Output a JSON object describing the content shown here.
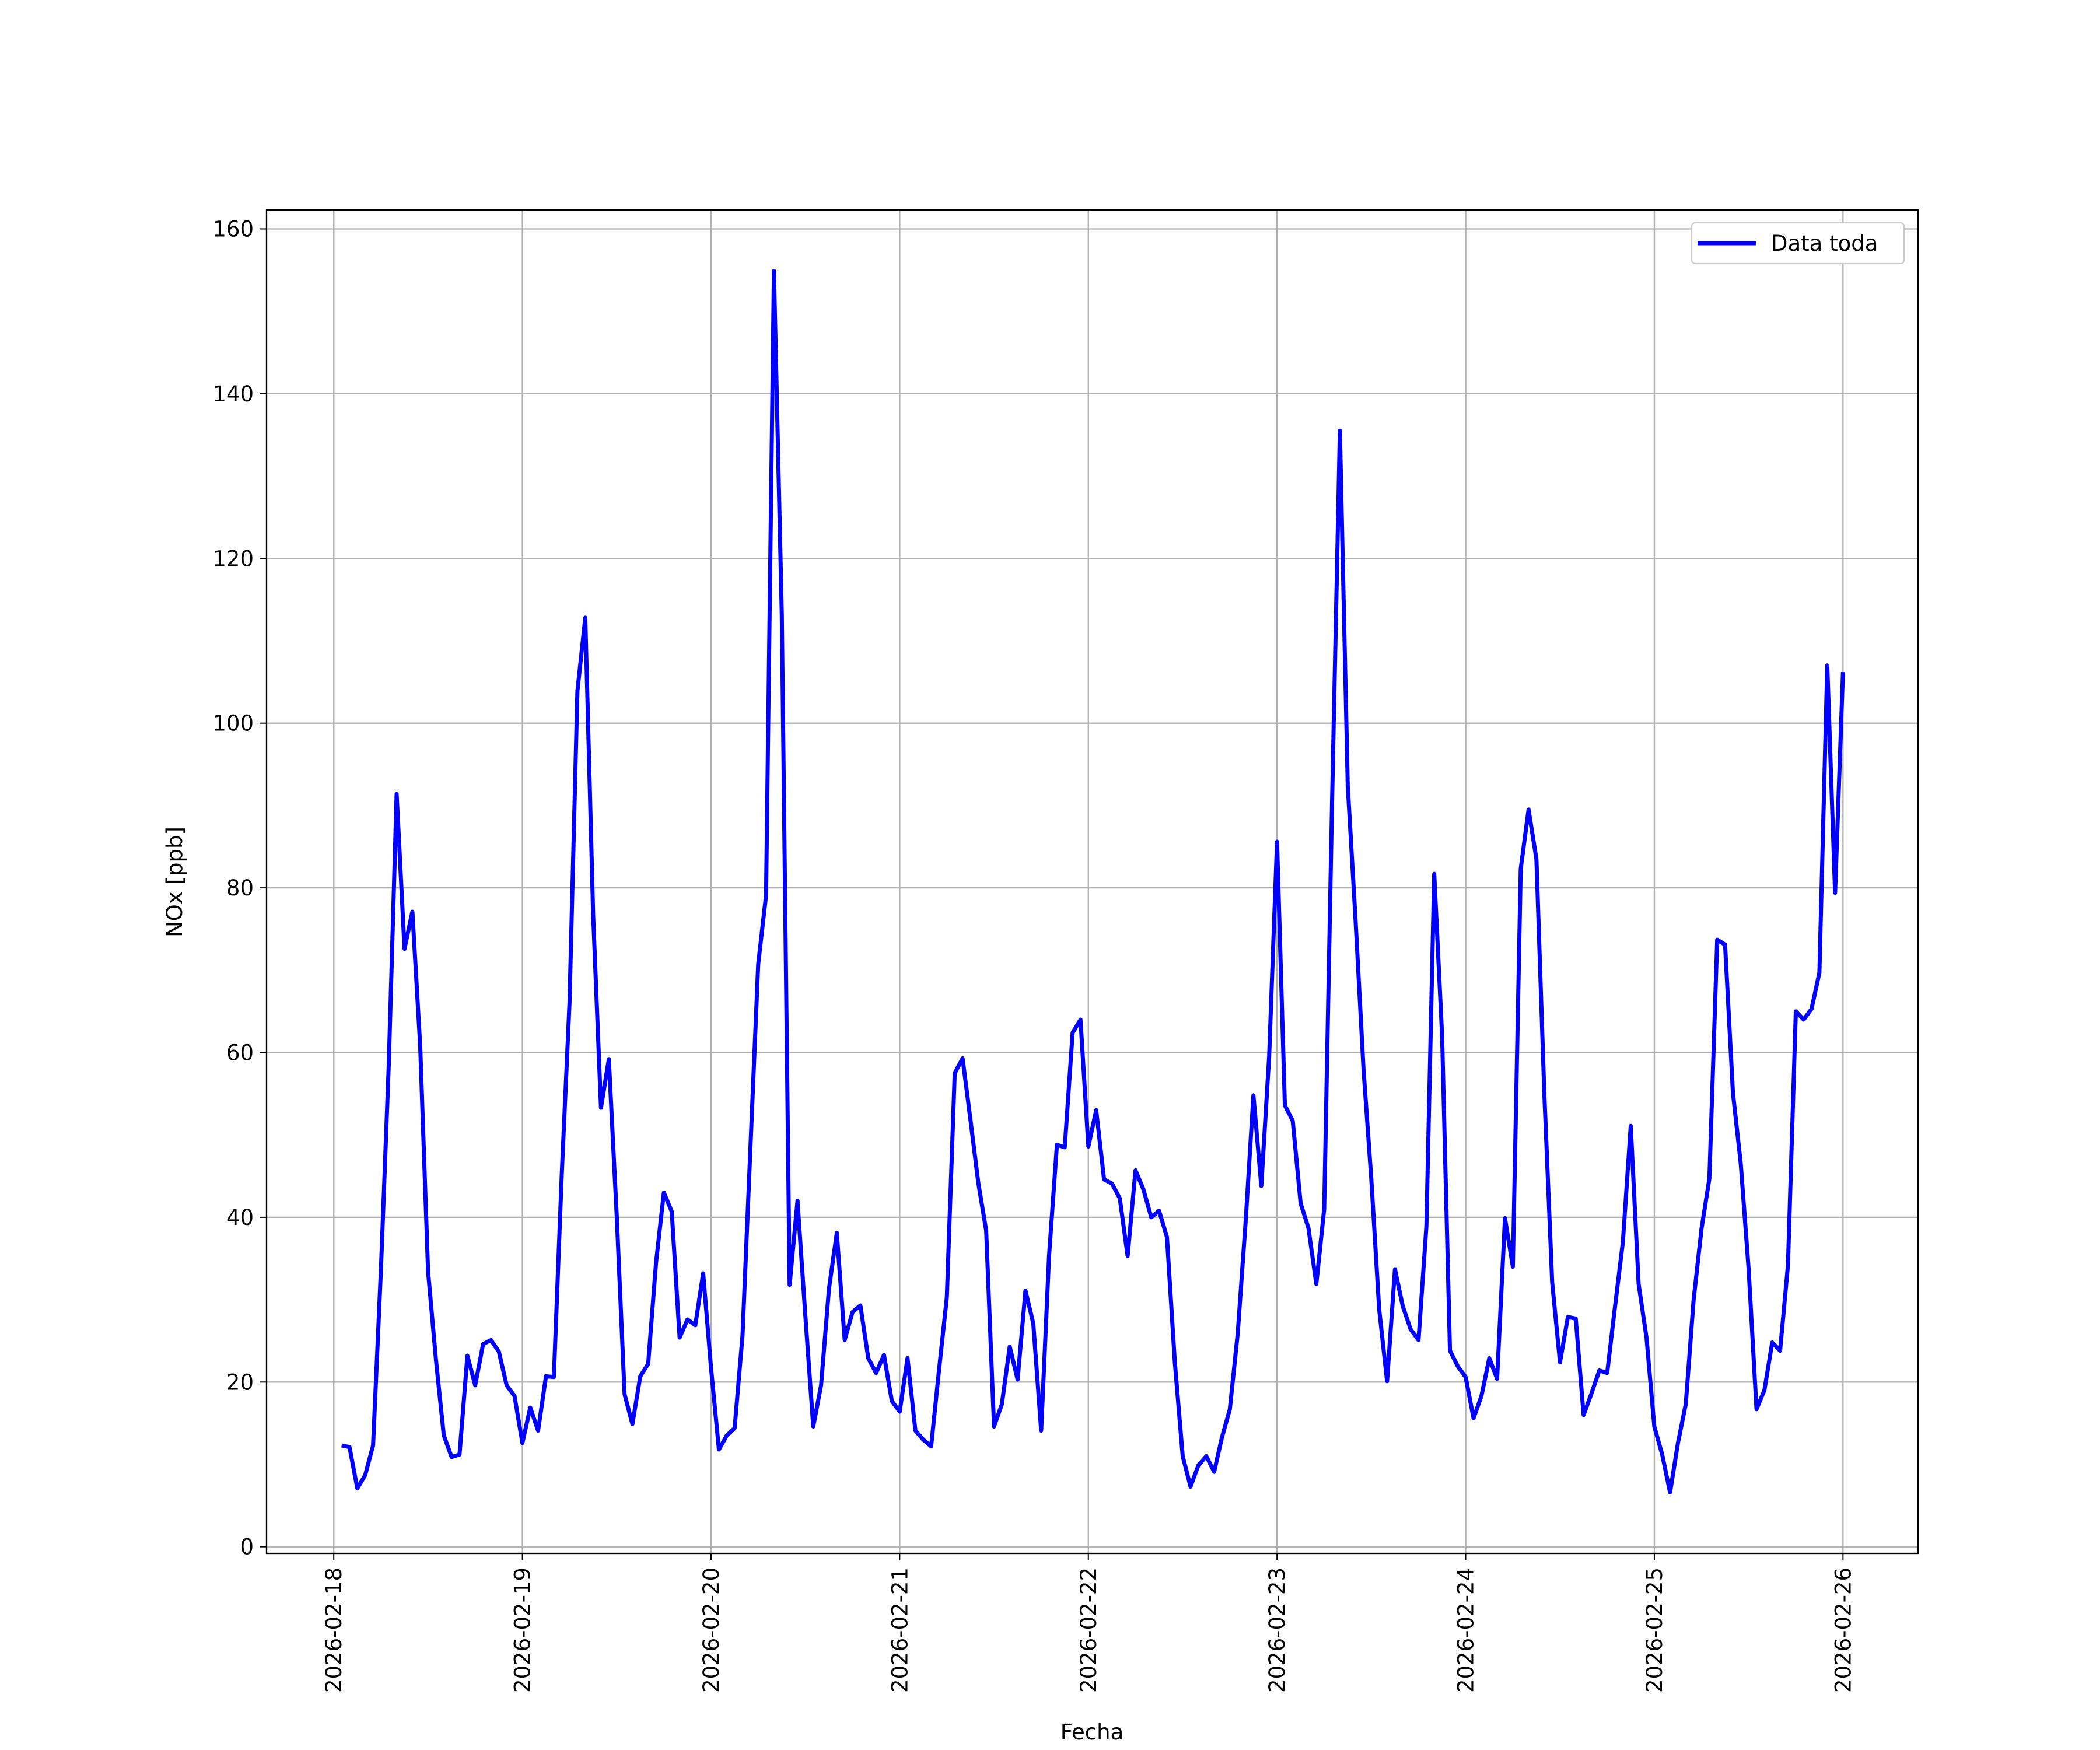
{
  "chart_data": {
    "type": "line",
    "xlabel": "Fecha",
    "ylabel": "NOx [ppb]",
    "x": [
      "2026-02-18 01:00",
      "2026-02-18 02:00",
      "2026-02-18 03:00",
      "2026-02-18 04:00",
      "2026-02-18 05:00",
      "2026-02-18 06:00",
      "2026-02-18 07:00",
      "2026-02-18 08:00",
      "2026-02-18 09:00",
      "2026-02-18 10:00",
      "2026-02-18 11:00",
      "2026-02-18 12:00",
      "2026-02-18 13:00",
      "2026-02-18 14:00",
      "2026-02-18 15:00",
      "2026-02-18 16:00",
      "2026-02-18 17:00",
      "2026-02-18 18:00",
      "2026-02-18 19:00",
      "2026-02-18 20:00",
      "2026-02-18 21:00",
      "2026-02-18 22:00",
      "2026-02-18 23:00",
      "2026-02-19 00:00",
      "2026-02-19 01:00",
      "2026-02-19 02:00",
      "2026-02-19 03:00",
      "2026-02-19 04:00",
      "2026-02-19 05:00",
      "2026-02-19 06:00",
      "2026-02-19 07:00",
      "2026-02-19 08:00",
      "2026-02-19 09:00",
      "2026-02-19 10:00",
      "2026-02-19 11:00",
      "2026-02-19 12:00",
      "2026-02-19 13:00",
      "2026-02-19 14:00",
      "2026-02-19 15:00",
      "2026-02-19 16:00",
      "2026-02-19 17:00",
      "2026-02-19 18:00",
      "2026-02-19 19:00",
      "2026-02-19 20:00",
      "2026-02-19 21:00",
      "2026-02-19 22:00",
      "2026-02-19 23:00",
      "2026-02-20 00:00",
      "2026-02-20 01:00",
      "2026-02-20 02:00",
      "2026-02-20 03:00",
      "2026-02-20 04:00",
      "2026-02-20 05:00",
      "2026-02-20 06:00",
      "2026-02-20 07:00",
      "2026-02-20 08:00",
      "2026-02-20 09:00",
      "2026-02-20 10:00",
      "2026-02-20 11:00",
      "2026-02-20 12:00",
      "2026-02-20 13:00",
      "2026-02-20 14:00",
      "2026-02-20 15:00",
      "2026-02-20 16:00",
      "2026-02-20 17:00",
      "2026-02-20 18:00",
      "2026-02-20 19:00",
      "2026-02-20 20:00",
      "2026-02-20 21:00",
      "2026-02-20 22:00",
      "2026-02-20 23:00",
      "2026-02-21 00:00",
      "2026-02-21 01:00",
      "2026-02-21 02:00",
      "2026-02-21 03:00",
      "2026-02-21 04:00",
      "2026-02-21 05:00",
      "2026-02-21 06:00",
      "2026-02-21 07:00",
      "2026-02-21 08:00",
      "2026-02-21 09:00",
      "2026-02-21 10:00",
      "2026-02-21 11:00",
      "2026-02-21 12:00",
      "2026-02-21 13:00",
      "2026-02-21 14:00",
      "2026-02-21 15:00",
      "2026-02-21 16:00",
      "2026-02-21 17:00",
      "2026-02-21 18:00",
      "2026-02-21 19:00",
      "2026-02-21 20:00",
      "2026-02-21 21:00",
      "2026-02-21 22:00",
      "2026-02-21 23:00",
      "2026-02-22 00:00",
      "2026-02-22 01:00",
      "2026-02-22 02:00",
      "2026-02-22 03:00",
      "2026-02-22 04:00",
      "2026-02-22 05:00",
      "2026-02-22 06:00",
      "2026-02-22 07:00",
      "2026-02-22 08:00",
      "2026-02-22 09:00",
      "2026-02-22 10:00",
      "2026-02-22 11:00",
      "2026-02-22 12:00",
      "2026-02-22 13:00",
      "2026-02-22 14:00",
      "2026-02-22 15:00",
      "2026-02-22 16:00",
      "2026-02-22 17:00",
      "2026-02-22 18:00",
      "2026-02-22 19:00",
      "2026-02-22 20:00",
      "2026-02-22 21:00",
      "2026-02-22 22:00",
      "2026-02-22 23:00",
      "2026-02-23 00:00",
      "2026-02-23 01:00",
      "2026-02-23 02:00",
      "2026-02-23 03:00",
      "2026-02-23 04:00",
      "2026-02-23 05:00",
      "2026-02-23 06:00",
      "2026-02-23 07:00",
      "2026-02-23 08:00",
      "2026-02-23 09:00",
      "2026-02-23 10:00",
      "2026-02-23 11:00",
      "2026-02-23 12:00",
      "2026-02-23 13:00",
      "2026-02-23 14:00",
      "2026-02-23 15:00",
      "2026-02-23 16:00",
      "2026-02-23 17:00",
      "2026-02-23 18:00",
      "2026-02-23 19:00",
      "2026-02-23 20:00",
      "2026-02-23 21:00",
      "2026-02-23 22:00",
      "2026-02-23 23:00",
      "2026-02-24 00:00",
      "2026-02-24 01:00",
      "2026-02-24 02:00",
      "2026-02-24 03:00",
      "2026-02-24 04:00",
      "2026-02-24 05:00",
      "2026-02-24 06:00",
      "2026-02-24 07:00",
      "2026-02-24 08:00",
      "2026-02-24 09:00",
      "2026-02-24 10:00",
      "2026-02-24 11:00",
      "2026-02-24 12:00",
      "2026-02-24 13:00",
      "2026-02-24 14:00",
      "2026-02-24 15:00",
      "2026-02-24 16:00",
      "2026-02-24 17:00",
      "2026-02-24 18:00",
      "2026-02-24 19:00",
      "2026-02-24 20:00",
      "2026-02-24 21:00",
      "2026-02-24 22:00",
      "2026-02-24 23:00",
      "2026-02-25 00:00",
      "2026-02-25 01:00",
      "2026-02-25 02:00",
      "2026-02-25 03:00",
      "2026-02-25 04:00",
      "2026-02-25 05:00",
      "2026-02-25 06:00",
      "2026-02-25 07:00",
      "2026-02-25 08:00",
      "2026-02-25 09:00",
      "2026-02-25 10:00",
      "2026-02-25 11:00",
      "2026-02-25 12:00",
      "2026-02-25 13:00",
      "2026-02-25 14:00",
      "2026-02-25 15:00",
      "2026-02-25 16:00",
      "2026-02-25 17:00",
      "2026-02-25 18:00",
      "2026-02-25 19:00",
      "2026-02-25 20:00",
      "2026-02-25 21:00",
      "2026-02-25 22:00",
      "2026-02-25 23:00",
      "2026-02-26 00:00"
    ],
    "series": [
      {
        "name": "Data toda",
        "color": "#0000ff",
        "values": [
          12.3,
          12.1,
          7.1,
          8.7,
          12.3,
          33.7,
          58.5,
          91.4,
          72.6,
          77.1,
          60.8,
          33.4,
          22.7,
          13.5,
          10.9,
          11.2,
          23.2,
          19.6,
          24.6,
          25.1,
          23.7,
          19.6,
          18.3,
          12.6,
          16.9,
          14.1,
          20.7,
          20.6,
          45.1,
          66.1,
          103.9,
          112.8,
          76.7,
          53.3,
          59.2,
          40.2,
          18.5,
          14.9,
          20.7,
          22.2,
          34.5,
          43.0,
          40.7,
          25.4,
          27.6,
          26.9,
          33.2,
          21.7,
          11.8,
          13.5,
          14.4,
          25.6,
          48.3,
          70.7,
          79.1,
          154.9,
          113.1,
          31.8,
          42.0,
          28.0,
          14.6,
          19.6,
          31.3,
          38.1,
          25.1,
          28.5,
          29.3,
          22.9,
          21.1,
          23.3,
          17.7,
          16.4,
          22.9,
          14.1,
          13.0,
          12.2,
          21.4,
          30.3,
          57.5,
          59.3,
          51.9,
          44.2,
          38.4,
          14.6,
          17.3,
          24.3,
          20.3,
          31.1,
          27.1,
          14.1,
          35.3,
          48.8,
          48.5,
          62.4,
          64.0,
          48.6,
          53.0,
          44.6,
          44.1,
          42.3,
          35.3,
          45.7,
          43.4,
          40.0,
          40.8,
          37.6,
          22.4,
          11.0,
          7.3,
          9.9,
          11.0,
          9.1,
          13.3,
          16.7,
          25.9,
          39.4,
          54.8,
          43.8,
          59.6,
          85.6,
          53.6,
          51.7,
          41.7,
          38.7,
          31.9,
          41.0,
          90.4,
          135.5,
          92.4,
          75.9,
          58.0,
          44.6,
          28.8,
          20.1,
          33.7,
          29.2,
          26.4,
          25.1,
          38.9,
          81.7,
          62.1,
          23.8,
          21.9,
          20.6,
          15.6,
          18.3,
          22.9,
          20.4,
          39.9,
          34.0,
          82.3,
          89.5,
          83.5,
          55.1,
          32.1,
          22.4,
          27.9,
          27.7,
          16.0,
          18.6,
          21.4,
          21.1,
          29.2,
          37.0,
          51.1,
          31.9,
          25.4,
          14.6,
          11.2,
          6.6,
          12.6,
          17.3,
          30.0,
          38.6,
          44.7,
          73.7,
          73.1,
          55.1,
          46.5,
          33.7,
          16.7,
          19.0,
          24.8,
          23.8,
          34.2,
          65.0,
          64.0,
          65.3,
          69.7,
          107.0,
          79.4,
          106.2
        ]
      }
    ],
    "xlim": [
      "2026-02-17 15:27",
      "2026-02-26 09:33"
    ],
    "xticks": [
      "2026-02-18",
      "2026-02-19",
      "2026-02-20",
      "2026-02-21",
      "2026-02-22",
      "2026-02-23",
      "2026-02-24",
      "2026-02-25",
      "2026-02-26"
    ],
    "ylim": [
      -0.8,
      162.3
    ],
    "yticks": [
      0,
      20,
      40,
      60,
      80,
      100,
      120,
      140,
      160
    ],
    "grid": true,
    "legend": "upper right"
  }
}
